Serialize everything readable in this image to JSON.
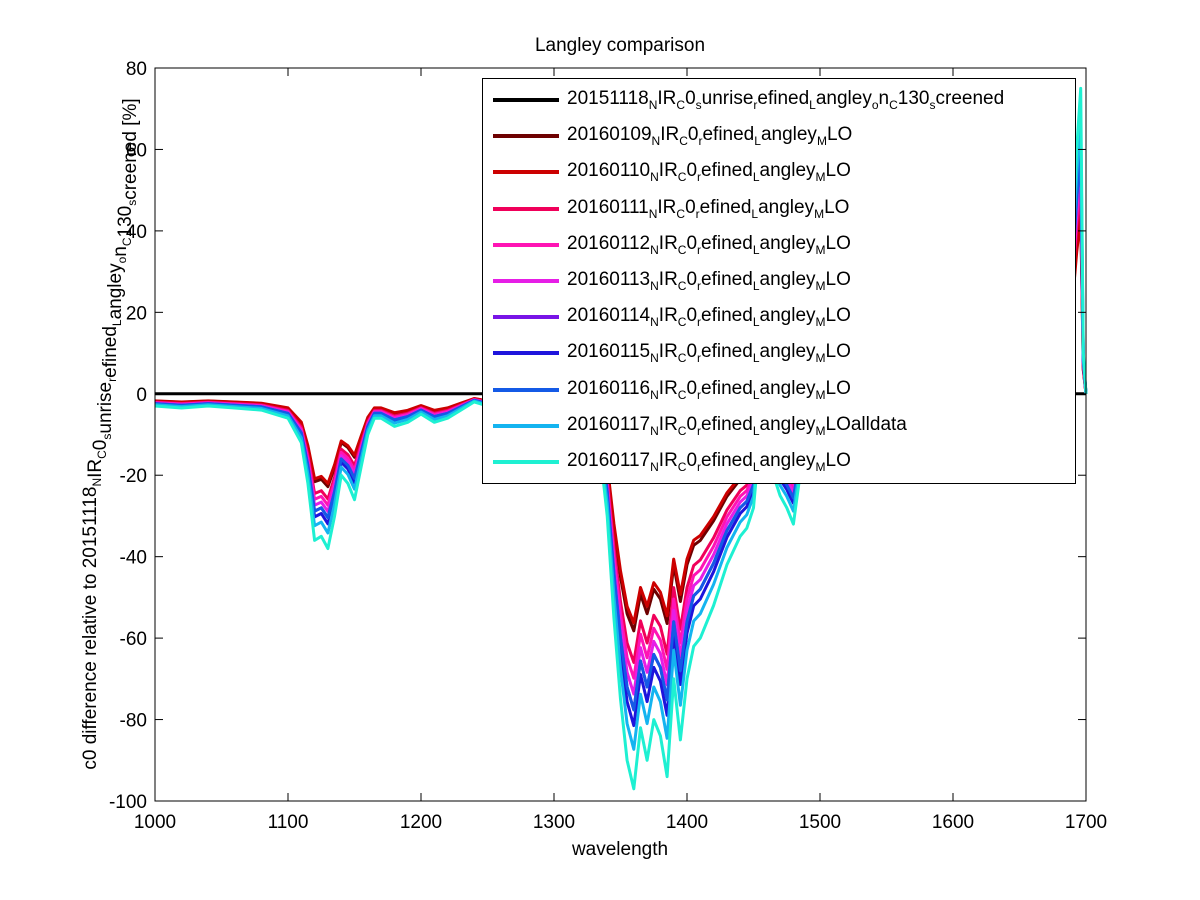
{
  "chart_data": {
    "type": "line",
    "title": "Langley comparison",
    "xlabel": "wavelength",
    "ylabel_parts": [
      {
        "t": "c0 difference relative to 20151118"
      },
      {
        "t": "N",
        "sub": true
      },
      {
        "t": "IR"
      },
      {
        "t": "C",
        "sub": true
      },
      {
        "t": "0"
      },
      {
        "t": "s",
        "sub": true
      },
      {
        "t": "unrise"
      },
      {
        "t": "r",
        "sub": true
      },
      {
        "t": "efined"
      },
      {
        "t": "L",
        "sub": true
      },
      {
        "t": "angley"
      },
      {
        "t": "o",
        "sub": true
      },
      {
        "t": "n"
      },
      {
        "t": "C",
        "sub": true
      },
      {
        "t": "130"
      },
      {
        "t": "s",
        "sub": true
      },
      {
        "t": "creened [%]"
      }
    ],
    "xlim": [
      1000,
      1700
    ],
    "ylim": [
      -100,
      80
    ],
    "xticks": [
      "1000",
      "1100",
      "1200",
      "1300",
      "1400",
      "1500",
      "1600",
      "1700"
    ],
    "yticks": [
      "-100",
      "-80",
      "-60",
      "-40",
      "-20",
      "0",
      "20",
      "40",
      "60",
      "80"
    ],
    "legend_position": "top-right",
    "series": [
      {
        "name": "20151118_NIR_C0_sunrise_refined_Langley_on_C130_screened",
        "color": "#000000",
        "scale": 0,
        "label_parts": [
          {
            "t": "20151118"
          },
          {
            "t": "N",
            "sub": true
          },
          {
            "t": "IR"
          },
          {
            "t": "C",
            "sub": true
          },
          {
            "t": "0"
          },
          {
            "t": "s",
            "sub": true
          },
          {
            "t": "unrise"
          },
          {
            "t": "r",
            "sub": true
          },
          {
            "t": "efined"
          },
          {
            "t": "L",
            "sub": true
          },
          {
            "t": "angley"
          },
          {
            "t": "o",
            "sub": true
          },
          {
            "t": "n"
          },
          {
            "t": "C",
            "sub": true
          },
          {
            "t": "130"
          },
          {
            "t": "s",
            "sub": true
          },
          {
            "t": "creened"
          }
        ]
      },
      {
        "name": "20160109_NIR_C0_refined_Langley_MLO",
        "color": "#6e0000",
        "scale": 0.6,
        "label_parts": [
          {
            "t": "20160109"
          },
          {
            "t": "N",
            "sub": true
          },
          {
            "t": "IR"
          },
          {
            "t": "C",
            "sub": true
          },
          {
            "t": "0"
          },
          {
            "t": "r",
            "sub": true
          },
          {
            "t": "efined"
          },
          {
            "t": "L",
            "sub": true
          },
          {
            "t": "angley"
          },
          {
            "t": "M",
            "sub": true
          },
          {
            "t": "LO"
          }
        ]
      },
      {
        "name": "20160110_NIR_C0_refined_Langley_MLO",
        "color": "#cc0000",
        "scale": 0.58,
        "label_parts": [
          {
            "t": "20160110"
          },
          {
            "t": "N",
            "sub": true
          },
          {
            "t": "IR"
          },
          {
            "t": "C",
            "sub": true
          },
          {
            "t": "0"
          },
          {
            "t": "r",
            "sub": true
          },
          {
            "t": "efined"
          },
          {
            "t": "L",
            "sub": true
          },
          {
            "t": "angley"
          },
          {
            "t": "M",
            "sub": true
          },
          {
            "t": "LO"
          }
        ]
      },
      {
        "name": "20160111_NIR_C0_refined_Langley_MLO",
        "color": "#f0005a",
        "scale": 0.68,
        "label_parts": [
          {
            "t": "20160111"
          },
          {
            "t": "N",
            "sub": true
          },
          {
            "t": "IR"
          },
          {
            "t": "C",
            "sub": true
          },
          {
            "t": "0"
          },
          {
            "t": "r",
            "sub": true
          },
          {
            "t": "efined"
          },
          {
            "t": "L",
            "sub": true
          },
          {
            "t": "angley"
          },
          {
            "t": "M",
            "sub": true
          },
          {
            "t": "LO"
          }
        ]
      },
      {
        "name": "20160112_NIR_C0_refined_Langley_MLO",
        "color": "#ff14b4",
        "scale": 0.72,
        "label_parts": [
          {
            "t": "20160112"
          },
          {
            "t": "N",
            "sub": true
          },
          {
            "t": "IR"
          },
          {
            "t": "C",
            "sub": true
          },
          {
            "t": "0"
          },
          {
            "t": "r",
            "sub": true
          },
          {
            "t": "efined"
          },
          {
            "t": "L",
            "sub": true
          },
          {
            "t": "angley"
          },
          {
            "t": "M",
            "sub": true
          },
          {
            "t": "LO"
          }
        ]
      },
      {
        "name": "20160113_NIR_C0_refined_Langley_MLO",
        "color": "#e61ee6",
        "scale": 0.76,
        "label_parts": [
          {
            "t": "20160113"
          },
          {
            "t": "N",
            "sub": true
          },
          {
            "t": "IR"
          },
          {
            "t": "C",
            "sub": true
          },
          {
            "t": "0"
          },
          {
            "t": "r",
            "sub": true
          },
          {
            "t": "efined"
          },
          {
            "t": "L",
            "sub": true
          },
          {
            "t": "angley"
          },
          {
            "t": "M",
            "sub": true
          },
          {
            "t": "LO"
          }
        ]
      },
      {
        "name": "20160114_NIR_C0_refined_Langley_MLO",
        "color": "#7814e6",
        "scale": 0.8,
        "label_parts": [
          {
            "t": "20160114"
          },
          {
            "t": "N",
            "sub": true
          },
          {
            "t": "IR"
          },
          {
            "t": "C",
            "sub": true
          },
          {
            "t": "0"
          },
          {
            "t": "r",
            "sub": true
          },
          {
            "t": "efined"
          },
          {
            "t": "L",
            "sub": true
          },
          {
            "t": "angley"
          },
          {
            "t": "M",
            "sub": true
          },
          {
            "t": "LO"
          }
        ]
      },
      {
        "name": "20160115_NIR_C0_refined_Langley_MLO",
        "color": "#1e14dc",
        "scale": 0.84,
        "label_parts": [
          {
            "t": "20160115"
          },
          {
            "t": "N",
            "sub": true
          },
          {
            "t": "IR"
          },
          {
            "t": "C",
            "sub": true
          },
          {
            "t": "0"
          },
          {
            "t": "r",
            "sub": true
          },
          {
            "t": "efined"
          },
          {
            "t": "L",
            "sub": true
          },
          {
            "t": "angley"
          },
          {
            "t": "M",
            "sub": true
          },
          {
            "t": "LO"
          }
        ]
      },
      {
        "name": "20160116_NIR_C0_refined_Langley_MLO",
        "color": "#145ae6",
        "scale": 0.8,
        "label_parts": [
          {
            "t": "20160116"
          },
          {
            "t": "N",
            "sub": true
          },
          {
            "t": "IR"
          },
          {
            "t": "C",
            "sub": true
          },
          {
            "t": "0"
          },
          {
            "t": "r",
            "sub": true
          },
          {
            "t": "efined"
          },
          {
            "t": "L",
            "sub": true
          },
          {
            "t": "angley"
          },
          {
            "t": "M",
            "sub": true
          },
          {
            "t": "LO"
          }
        ]
      },
      {
        "name": "20160117_NIR_C0_refined_Langley_MLOalldata",
        "color": "#14b4f0",
        "scale": 0.9,
        "label_parts": [
          {
            "t": "20160117"
          },
          {
            "t": "N",
            "sub": true
          },
          {
            "t": "IR"
          },
          {
            "t": "C",
            "sub": true
          },
          {
            "t": "0"
          },
          {
            "t": "r",
            "sub": true
          },
          {
            "t": "efined"
          },
          {
            "t": "L",
            "sub": true
          },
          {
            "t": "angley"
          },
          {
            "t": "M",
            "sub": true
          },
          {
            "t": "LOalldata"
          }
        ]
      },
      {
        "name": "20160117_NIR_C0_refined_Langley_MLO",
        "color": "#1ef0d2",
        "scale": 1.0,
        "label_parts": [
          {
            "t": "20160117"
          },
          {
            "t": "N",
            "sub": true
          },
          {
            "t": "IR"
          },
          {
            "t": "C",
            "sub": true
          },
          {
            "t": "0"
          },
          {
            "t": "r",
            "sub": true
          },
          {
            "t": "efined"
          },
          {
            "t": "L",
            "sub": true
          },
          {
            "t": "angley"
          },
          {
            "t": "M",
            "sub": true
          },
          {
            "t": "LO"
          }
        ]
      }
    ],
    "base_profile": {
      "x": [
        1000,
        1020,
        1040,
        1060,
        1080,
        1100,
        1110,
        1115,
        1120,
        1125,
        1130,
        1135,
        1140,
        1145,
        1150,
        1155,
        1160,
        1165,
        1170,
        1180,
        1190,
        1200,
        1210,
        1220,
        1230,
        1240,
        1250,
        1260,
        1280,
        1300,
        1320,
        1330,
        1335,
        1340,
        1345,
        1350,
        1355,
        1360,
        1365,
        1370,
        1375,
        1380,
        1385,
        1390,
        1395,
        1400,
        1405,
        1410,
        1420,
        1430,
        1440,
        1445,
        1450,
        1455,
        1460,
        1465,
        1470,
        1475,
        1480,
        1485,
        1490,
        1500,
        1520,
        1550,
        1600,
        1650,
        1680,
        1690,
        1693,
        1696,
        1698,
        1700
      ],
      "y": [
        -3,
        -3.5,
        -3,
        -3.5,
        -4,
        -6,
        -12,
        -22,
        -36,
        -35,
        -38,
        -30,
        -20,
        -22,
        -26,
        -18,
        -10,
        -6,
        -6,
        -8,
        -7,
        -5,
        -7,
        -6,
        -4,
        -2,
        -3,
        -4,
        -5,
        -5,
        -6,
        -8,
        -15,
        -30,
        -55,
        -75,
        -90,
        -97,
        -82,
        -90,
        -80,
        -84,
        -94,
        -70,
        -85,
        -70,
        -62,
        -60,
        -52,
        -42,
        -35,
        -33,
        -28,
        -10,
        -8,
        -20,
        -25,
        -28,
        -32,
        -20,
        -15,
        -10,
        -8,
        -5,
        -3,
        -2,
        -3,
        40,
        60,
        75,
        10,
        0
      ]
    }
  }
}
